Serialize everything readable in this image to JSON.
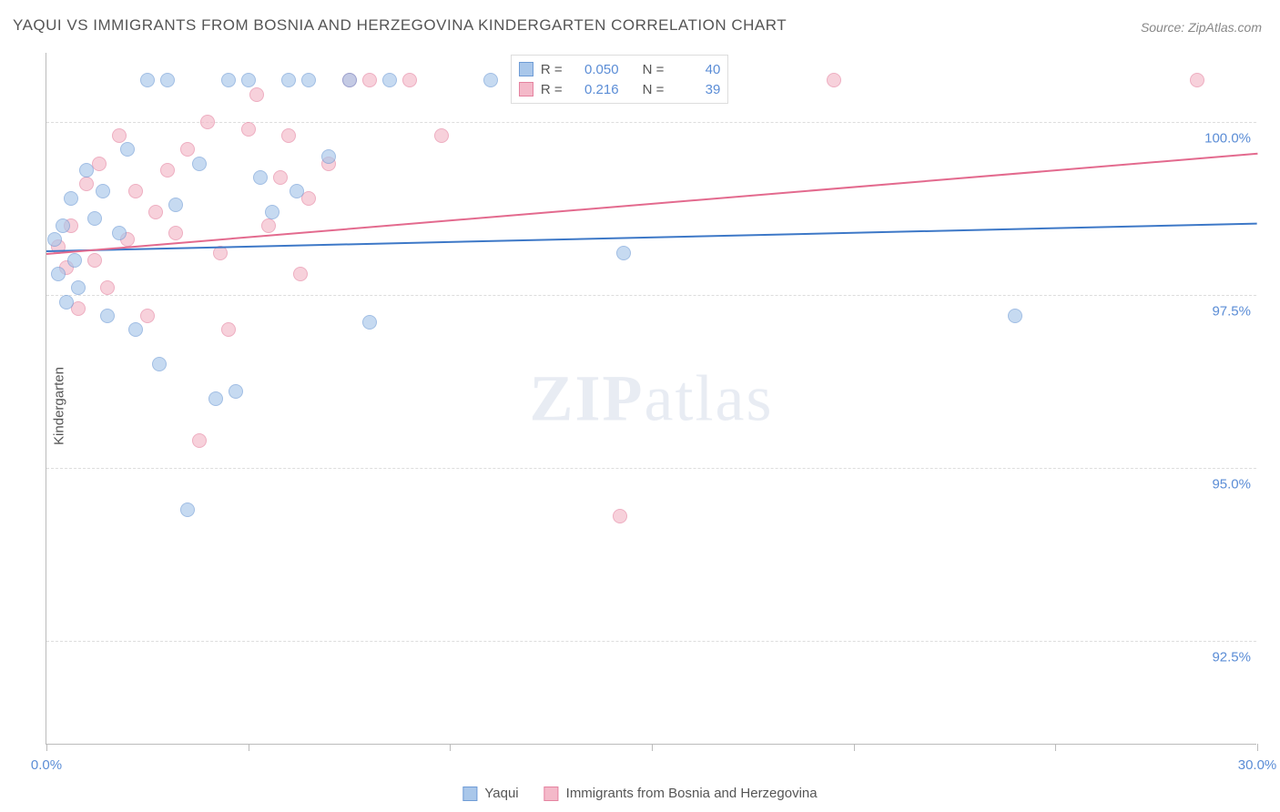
{
  "title": "YAQUI VS IMMIGRANTS FROM BOSNIA AND HERZEGOVINA KINDERGARTEN CORRELATION CHART",
  "source": "Source: ZipAtlas.com",
  "ylabel": "Kindergarten",
  "watermark_zip": "ZIP",
  "watermark_atlas": "atlas",
  "chart": {
    "type": "scatter",
    "xlim": [
      0,
      30
    ],
    "ylim": [
      91,
      101
    ],
    "xticks": [
      0,
      5,
      10,
      15,
      20,
      25,
      30
    ],
    "xtick_labels": {
      "0": "0.0%",
      "30": "30.0%"
    },
    "yticks": [
      92.5,
      95.0,
      97.5,
      100.0
    ],
    "ytick_labels": [
      "92.5%",
      "95.0%",
      "97.5%",
      "100.0%"
    ],
    "grid_color": "#dddddd",
    "axis_color": "#bbbbbb",
    "background_color": "#ffffff",
    "marker_radius": 8,
    "marker_opacity": 0.65
  },
  "series_a": {
    "label": "Yaqui",
    "fill_color": "#a9c7ea",
    "stroke_color": "#6f9cd6",
    "line_color": "#3d78c7",
    "R": "0.050",
    "N": "40",
    "trend": {
      "x1": 0,
      "y1": 98.15,
      "x2": 30,
      "y2": 98.55
    },
    "points": [
      [
        0.2,
        98.3
      ],
      [
        0.3,
        97.8
      ],
      [
        0.4,
        98.5
      ],
      [
        0.5,
        97.4
      ],
      [
        0.6,
        98.9
      ],
      [
        0.7,
        98.0
      ],
      [
        0.8,
        97.6
      ],
      [
        1.0,
        99.3
      ],
      [
        1.2,
        98.6
      ],
      [
        1.4,
        99.0
      ],
      [
        1.5,
        97.2
      ],
      [
        1.8,
        98.4
      ],
      [
        2.0,
        99.6
      ],
      [
        2.2,
        97.0
      ],
      [
        2.5,
        100.6
      ],
      [
        2.8,
        96.5
      ],
      [
        3.0,
        100.6
      ],
      [
        3.2,
        98.8
      ],
      [
        3.5,
        94.4
      ],
      [
        3.8,
        99.4
      ],
      [
        4.2,
        96.0
      ],
      [
        4.5,
        100.6
      ],
      [
        4.7,
        96.1
      ],
      [
        5.0,
        100.6
      ],
      [
        5.3,
        99.2
      ],
      [
        5.6,
        98.7
      ],
      [
        6.0,
        100.6
      ],
      [
        6.2,
        99.0
      ],
      [
        6.5,
        100.6
      ],
      [
        7.0,
        99.5
      ],
      [
        7.5,
        100.6
      ],
      [
        8.0,
        97.1
      ],
      [
        8.5,
        100.6
      ],
      [
        11.0,
        100.6
      ],
      [
        14.3,
        98.1
      ],
      [
        24.0,
        97.2
      ]
    ]
  },
  "series_b": {
    "label": "Immigrants from Bosnia and Herzegovina",
    "fill_color": "#f4b9c9",
    "stroke_color": "#e583a0",
    "line_color": "#e36a8e",
    "R": "0.216",
    "N": "39",
    "trend": {
      "x1": 0,
      "y1": 98.1,
      "x2": 30,
      "y2": 99.55
    },
    "points": [
      [
        0.3,
        98.2
      ],
      [
        0.5,
        97.9
      ],
      [
        0.6,
        98.5
      ],
      [
        0.8,
        97.3
      ],
      [
        1.0,
        99.1
      ],
      [
        1.2,
        98.0
      ],
      [
        1.3,
        99.4
      ],
      [
        1.5,
        97.6
      ],
      [
        1.8,
        99.8
      ],
      [
        2.0,
        98.3
      ],
      [
        2.2,
        99.0
      ],
      [
        2.5,
        97.2
      ],
      [
        2.7,
        98.7
      ],
      [
        3.0,
        99.3
      ],
      [
        3.2,
        98.4
      ],
      [
        3.5,
        99.6
      ],
      [
        3.8,
        95.4
      ],
      [
        4.0,
        100.0
      ],
      [
        4.3,
        98.1
      ],
      [
        4.5,
        97.0
      ],
      [
        5.0,
        99.9
      ],
      [
        5.2,
        100.4
      ],
      [
        5.5,
        98.5
      ],
      [
        5.8,
        99.2
      ],
      [
        6.0,
        99.8
      ],
      [
        6.3,
        97.8
      ],
      [
        6.5,
        98.9
      ],
      [
        7.0,
        99.4
      ],
      [
        7.5,
        100.6
      ],
      [
        8.0,
        100.6
      ],
      [
        9.0,
        100.6
      ],
      [
        9.8,
        99.8
      ],
      [
        14.2,
        94.3
      ],
      [
        19.5,
        100.6
      ],
      [
        28.5,
        100.6
      ]
    ]
  },
  "legend_top": {
    "r_label": "R =",
    "n_label": "N ="
  }
}
